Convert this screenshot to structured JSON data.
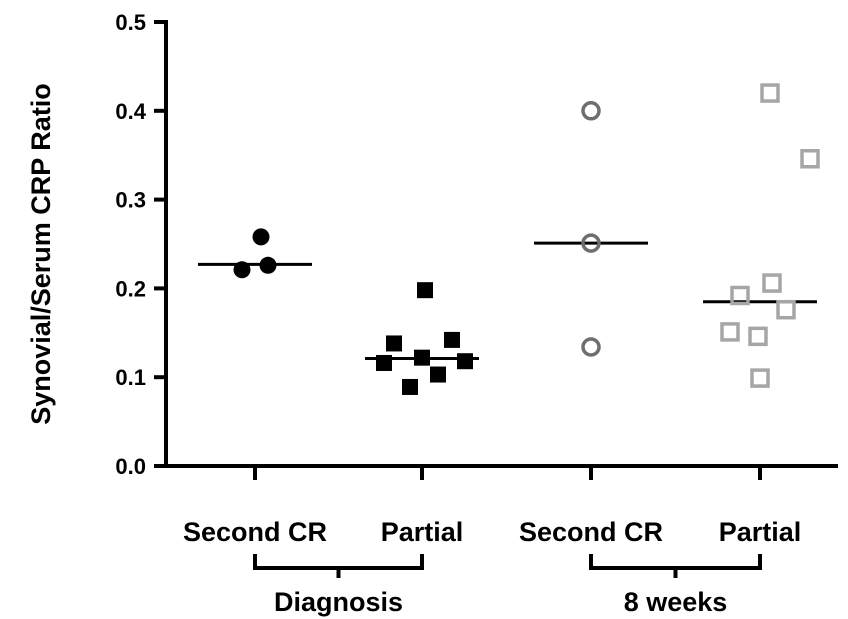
{
  "chart_data": {
    "type": "scatter",
    "title": "",
    "ylabel": "Synovial/Serum CRP Ratio",
    "xlabel": "",
    "ylim": [
      0,
      0.5
    ],
    "yticks": [
      "0.0",
      "0.1",
      "0.2",
      "0.3",
      "0.4",
      "0.5"
    ],
    "categories": [
      "Second CR",
      "Partial",
      "Second CR",
      "Partial"
    ],
    "groups": [
      {
        "label": "Diagnosis",
        "categories": [
          0,
          1
        ]
      },
      {
        "label": "8 weeks",
        "categories": [
          2,
          3
        ]
      }
    ],
    "series": [
      {
        "category": 0,
        "marker": "filled-circle",
        "color": "#000000",
        "values": [
          0.258,
          0.221,
          0.226
        ],
        "median": 0.227
      },
      {
        "category": 1,
        "marker": "filled-square",
        "color": "#000000",
        "values": [
          0.198,
          0.138,
          0.142,
          0.122,
          0.116,
          0.118,
          0.103,
          0.089
        ],
        "median": 0.121
      },
      {
        "category": 2,
        "marker": "open-circle",
        "color": "#6e6e6e",
        "values": [
          0.4,
          0.251,
          0.134
        ],
        "median": 0.251
      },
      {
        "category": 3,
        "marker": "open-square",
        "color": "#a6a6a6",
        "values": [
          0.42,
          0.346,
          0.206,
          0.192,
          0.176,
          0.151,
          0.146,
          0.099
        ],
        "median": 0.185
      }
    ]
  }
}
